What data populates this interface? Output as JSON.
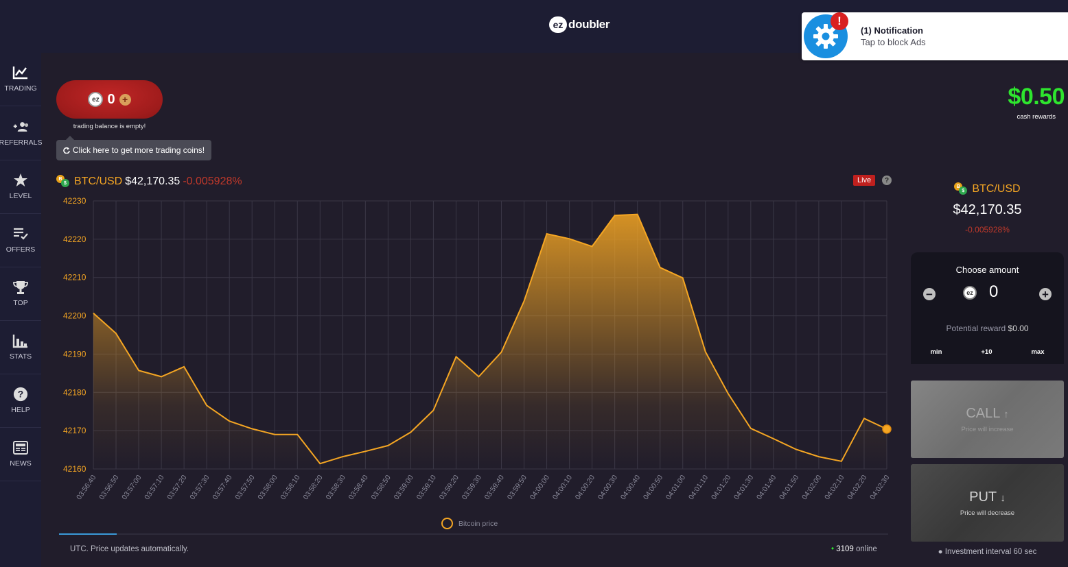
{
  "header": {
    "logo_badge": "ez",
    "logo_text": "doubler"
  },
  "sidebar": {
    "items": [
      {
        "label": "TRADING",
        "icon": "trading-chart-icon"
      },
      {
        "label": "REFERRALS",
        "icon": "users-icon"
      },
      {
        "label": "LEVEL",
        "icon": "star-icon"
      },
      {
        "label": "OFFERS",
        "icon": "list-check-icon"
      },
      {
        "label": "TOP",
        "icon": "trophy-icon"
      },
      {
        "label": "STATS",
        "icon": "bar-chart-icon"
      },
      {
        "label": "HELP",
        "icon": "question-icon"
      },
      {
        "label": "NEWS",
        "icon": "newspaper-icon"
      }
    ]
  },
  "balance": {
    "coin_badge": "ez",
    "coins": "0",
    "plus": "+",
    "empty_note": "trading balance is empty!",
    "more_coins_label": "Click here to get more trading coins!"
  },
  "rewards": {
    "value": "$0.50",
    "label": "cash rewards"
  },
  "pair": {
    "name": "BTC/USD",
    "price": "$42,170.35",
    "change": "-0.005928%",
    "coin_a": "B",
    "coin_b": "$"
  },
  "live_badge": "Live",
  "help_mark": "?",
  "legend": "Bitcoin price",
  "footer": {
    "note": "UTC. Price updates automatically.",
    "online_count": "3109",
    "online_label": "online"
  },
  "amount": {
    "title": "Choose amount",
    "minus": "−",
    "plus": "+",
    "coin_badge": "ez",
    "value": "0",
    "potential_label": "Potential reward",
    "potential_value": "$0.00",
    "quick_min": "min",
    "quick_plus10": "+10",
    "quick_max": "max"
  },
  "call": {
    "label": "CALL",
    "arrow": "↑",
    "sub": "Price will increase"
  },
  "put": {
    "label": "PUT",
    "arrow": "↓",
    "sub": "Price will decrease"
  },
  "interval": "Investment interval 60 sec",
  "notification": {
    "badge": "!",
    "title": "(1) Notification",
    "subtitle": "Tap to block Ads"
  },
  "colors": {
    "accent": "#f5a623",
    "green": "#2ee52e",
    "red": "#c0392b",
    "live": "#c0201e"
  },
  "chart_data": {
    "type": "area",
    "series": [
      {
        "name": "Bitcoin price",
        "values": [
          42200.7,
          42195.4,
          42185.7,
          42184.1,
          42186.7,
          42176.6,
          42172.5,
          42170.5,
          42169.0,
          42169.0,
          42161.4,
          42163.2,
          42164.6,
          42166.1,
          42169.6,
          42175.3,
          42189.3,
          42184.1,
          42190.5,
          42203.8,
          42221.4,
          42220.1,
          42218.1,
          42226.2,
          42226.5,
          42212.6,
          42209.9,
          42190.6,
          42179.7,
          42170.6,
          42167.9,
          42165.1,
          42163.2,
          42162.0,
          42173.2,
          42170.4
        ]
      }
    ],
    "x": [
      "03:56:40",
      "03:56:50",
      "03:57:00",
      "03:57:10",
      "03:57:20",
      "03:57:30",
      "03:57:40",
      "03:57:50",
      "03:58:00",
      "03:58:10",
      "03:58:20",
      "03:58:30",
      "03:58:40",
      "03:58:50",
      "03:59:00",
      "03:59:10",
      "03:59:20",
      "03:59:30",
      "03:59:40",
      "03:59:50",
      "04:00:00",
      "04:00:10",
      "04:00:20",
      "04:00:30",
      "04:00:40",
      "04:00:50",
      "04:01:00",
      "04:01:10",
      "04:01:20",
      "04:01:30",
      "04:01:40",
      "04:01:50",
      "04:02:00",
      "04:02:10",
      "04:02:20",
      "04:02:30"
    ],
    "yticks": [
      42230,
      42220,
      42210,
      42200,
      42190,
      42180,
      42170,
      42160
    ],
    "ylim": [
      42160,
      42230
    ],
    "grid": true,
    "legend": "bottom-center"
  }
}
